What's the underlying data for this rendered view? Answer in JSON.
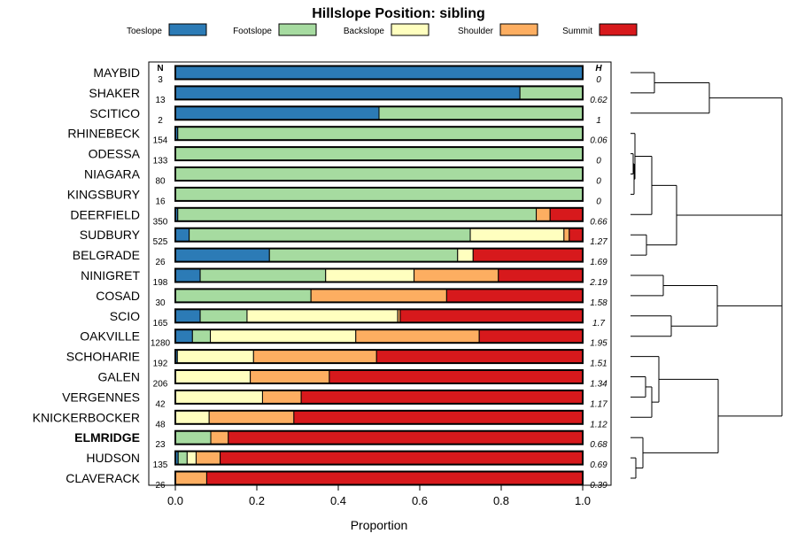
{
  "chart_data": {
    "type": "stacked-bar",
    "orientation": "horizontal",
    "title": "Hillslope Position: sibling",
    "xlabel": "Proportion",
    "xlim": [
      0,
      1
    ],
    "xticks": [
      "0.0",
      "0.2",
      "0.4",
      "0.6",
      "0.8",
      "1.0"
    ],
    "n_header": "N",
    "h_header": "H",
    "legend": [
      {
        "name": "Toeslope",
        "color": "#2c7bb6"
      },
      {
        "name": "Footslope",
        "color": "#a6dba0"
      },
      {
        "name": "Backslope",
        "color": "#ffffbf"
      },
      {
        "name": "Shoulder",
        "color": "#fdae61"
      },
      {
        "name": "Summit",
        "color": "#d7191c"
      }
    ],
    "rows": [
      {
        "name": "MAYBID",
        "n": "3",
        "h": "0",
        "bold": false,
        "values": [
          1.0,
          0,
          0,
          0,
          0
        ]
      },
      {
        "name": "SHAKER",
        "n": "13",
        "h": "0.62",
        "bold": false,
        "values": [
          0.846,
          0.154,
          0,
          0,
          0
        ]
      },
      {
        "name": "SCITICO",
        "n": "2",
        "h": "1",
        "bold": false,
        "values": [
          0.5,
          0.5,
          0,
          0,
          0
        ]
      },
      {
        "name": "RHINEBECK",
        "n": "154",
        "h": "0.06",
        "bold": false,
        "values": [
          0.006,
          0.994,
          0,
          0,
          0
        ]
      },
      {
        "name": "ODESSA",
        "n": "133",
        "h": "0",
        "bold": false,
        "values": [
          0,
          1.0,
          0,
          0,
          0
        ]
      },
      {
        "name": "NIAGARA",
        "n": "80",
        "h": "0",
        "bold": false,
        "values": [
          0,
          1.0,
          0,
          0,
          0
        ]
      },
      {
        "name": "KINGSBURY",
        "n": "16",
        "h": "0",
        "bold": false,
        "values": [
          0,
          1.0,
          0,
          0,
          0
        ]
      },
      {
        "name": "DEERFIELD",
        "n": "350",
        "h": "0.66",
        "bold": false,
        "values": [
          0.006,
          0.88,
          0,
          0.034,
          0.08
        ]
      },
      {
        "name": "SUDBURY",
        "n": "525",
        "h": "1.27",
        "bold": false,
        "values": [
          0.034,
          0.69,
          0.23,
          0.013,
          0.033
        ]
      },
      {
        "name": "BELGRADE",
        "n": "26",
        "h": "1.69",
        "bold": false,
        "values": [
          0.231,
          0.462,
          0.038,
          0,
          0.269
        ]
      },
      {
        "name": "NINIGRET",
        "n": "198",
        "h": "2.19",
        "bold": false,
        "values": [
          0.061,
          0.308,
          0.217,
          0.207,
          0.207
        ]
      },
      {
        "name": "COSAD",
        "n": "30",
        "h": "1.58",
        "bold": false,
        "values": [
          0,
          0.333,
          0,
          0.333,
          0.334
        ]
      },
      {
        "name": "SCIO",
        "n": "165",
        "h": "1.7",
        "bold": false,
        "values": [
          0.061,
          0.115,
          0.37,
          0.006,
          0.448
        ]
      },
      {
        "name": "OAKVILLE",
        "n": "1280",
        "h": "1.95",
        "bold": false,
        "values": [
          0.042,
          0.044,
          0.357,
          0.303,
          0.254
        ]
      },
      {
        "name": "SCHOHARIE",
        "n": "192",
        "h": "1.51",
        "bold": false,
        "values": [
          0.005,
          0,
          0.187,
          0.302,
          0.506
        ]
      },
      {
        "name": "GALEN",
        "n": "206",
        "h": "1.34",
        "bold": false,
        "values": [
          0,
          0,
          0.184,
          0.194,
          0.622
        ]
      },
      {
        "name": "VERGENNES",
        "n": "42",
        "h": "1.17",
        "bold": false,
        "values": [
          0,
          0,
          0.214,
          0.095,
          0.691
        ]
      },
      {
        "name": "KNICKERBOCKER",
        "n": "48",
        "h": "1.12",
        "bold": false,
        "values": [
          0,
          0,
          0.083,
          0.208,
          0.709
        ]
      },
      {
        "name": "ELMRIDGE",
        "n": "23",
        "h": "0.68",
        "bold": true,
        "values": [
          0,
          0.087,
          0,
          0.043,
          0.87
        ]
      },
      {
        "name": "HUDSON",
        "n": "135",
        "h": "0.69",
        "bold": false,
        "values": [
          0.007,
          0.022,
          0.022,
          0.059,
          0.89
        ]
      },
      {
        "name": "CLAVERACK",
        "n": "26",
        "h": "0.39",
        "bold": false,
        "values": [
          0,
          0,
          0,
          0.077,
          0.923
        ]
      }
    ]
  }
}
